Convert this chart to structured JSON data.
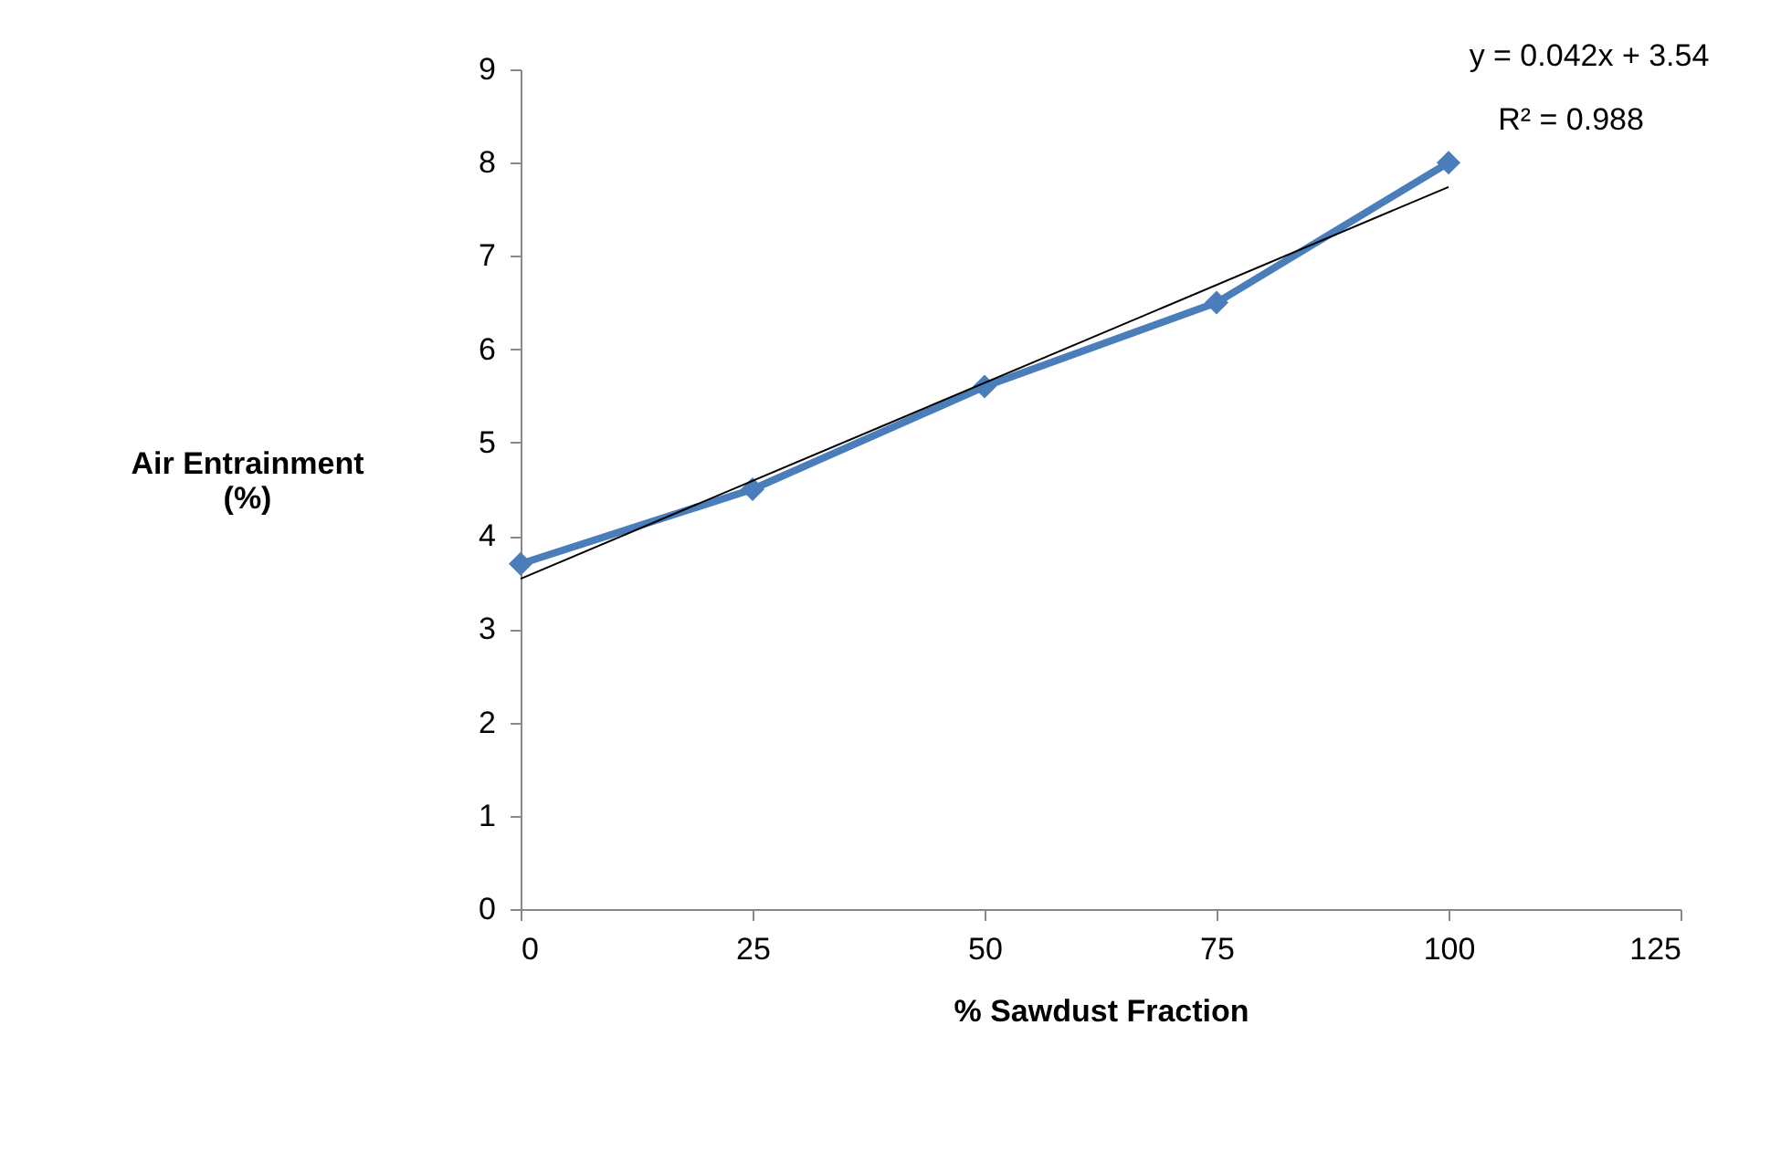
{
  "chart_data": {
    "type": "line",
    "xlabel": "% Sawdust Fraction",
    "ylabel": "Air Entrainment (%)",
    "x": [
      0,
      25,
      50,
      75,
      100
    ],
    "series": [
      {
        "color": "#4a7ebb",
        "values": [
          3.7,
          4.5,
          5.6,
          6.5,
          8.0
        ],
        "marker": "diamond",
        "line_style": "solid"
      },
      {
        "type": "line",
        "color": "#000000",
        "x": [
          0,
          100
        ],
        "values": [
          3.54,
          7.74
        ],
        "marker": "none",
        "line_style": "solid"
      }
    ],
    "annotations": [
      "y = 0.042x + 3.54",
      "R² = 0.988"
    ],
    "xlim": [
      0,
      125
    ],
    "xticks": [
      0,
      25,
      50,
      75,
      100,
      125
    ],
    "ylim": [
      0,
      9
    ],
    "yticks": [
      0,
      1,
      2,
      3,
      4,
      5,
      6,
      7,
      8,
      9
    ],
    "grid": false
  }
}
